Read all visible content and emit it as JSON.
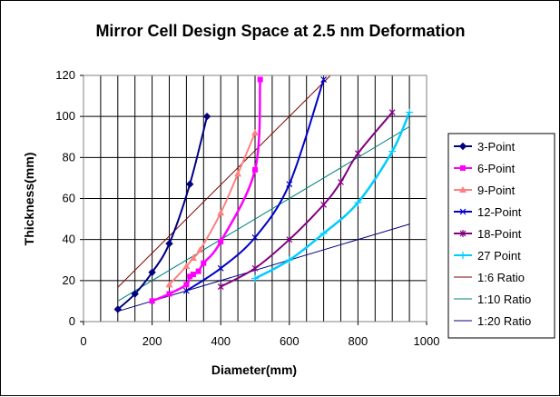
{
  "chart_data": {
    "type": "scatter",
    "title": "Mirror Cell Design Space at 2.5 nm Deformation",
    "xlabel": "Diameter(mm)",
    "ylabel": "Thickness(mm)",
    "xlim": [
      0,
      1000
    ],
    "ylim": [
      0,
      120
    ],
    "x_ticks": [
      "0",
      "200",
      "400",
      "600",
      "800",
      "1000"
    ],
    "y_ticks": [
      "0",
      "20",
      "40",
      "60",
      "80",
      "100",
      "120"
    ],
    "grid": "vertical and horizontal major gridlines",
    "legend_position": "right",
    "series": [
      {
        "name": "3-Point",
        "color": "#000080",
        "marker": "diamond",
        "points": [
          [
            100,
            6
          ],
          [
            150,
            13.5
          ],
          [
            200,
            24
          ],
          [
            250,
            38
          ],
          [
            310,
            67
          ],
          [
            360,
            100
          ]
        ]
      },
      {
        "name": "6-Point",
        "color": "#ff00ff",
        "marker": "square",
        "points": [
          [
            200,
            10
          ],
          [
            250,
            13.5
          ],
          [
            300,
            18
          ],
          [
            310,
            22
          ],
          [
            320,
            23
          ],
          [
            335,
            24.5
          ],
          [
            350,
            28.5
          ],
          [
            400,
            39
          ],
          [
            500,
            74
          ],
          [
            515,
            118
          ]
        ]
      },
      {
        "name": "9-Point",
        "color": "#ff8080",
        "marker": "triangle",
        "points": [
          [
            250,
            18
          ],
          [
            300,
            27
          ],
          [
            320,
            31
          ],
          [
            340,
            35
          ],
          [
            400,
            53
          ],
          [
            450,
            72
          ],
          [
            500,
            92
          ]
        ]
      },
      {
        "name": "12-Point",
        "color": "#0000cc",
        "marker": "x",
        "points": [
          [
            300,
            15
          ],
          [
            400,
            26
          ],
          [
            500,
            41
          ],
          [
            600,
            67
          ],
          [
            700,
            118
          ]
        ]
      },
      {
        "name": "18-Point",
        "color": "#800080",
        "marker": "star",
        "points": [
          [
            400,
            17
          ],
          [
            500,
            26
          ],
          [
            600,
            40
          ],
          [
            700,
            57
          ],
          [
            750,
            68
          ],
          [
            800,
            82
          ],
          [
            900,
            102
          ]
        ]
      },
      {
        "name": "27 Point",
        "color": "#00ccff",
        "marker": "plus",
        "points": [
          [
            500,
            21
          ],
          [
            600,
            30
          ],
          [
            700,
            43
          ],
          [
            800,
            58
          ],
          [
            900,
            83
          ],
          [
            950,
            102
          ]
        ]
      },
      {
        "name": "1:6 Ratio",
        "color": "#800000",
        "marker": "none",
        "points": [
          [
            100,
            16.7
          ],
          [
            720,
            120
          ]
        ]
      },
      {
        "name": "1:10 Ratio",
        "color": "#008080",
        "marker": "none",
        "points": [
          [
            100,
            10
          ],
          [
            950,
            95
          ]
        ]
      },
      {
        "name": "1:20 Ratio",
        "color": "#000080",
        "marker": "none",
        "points": [
          [
            100,
            5
          ],
          [
            950,
            47.5
          ]
        ]
      }
    ]
  }
}
